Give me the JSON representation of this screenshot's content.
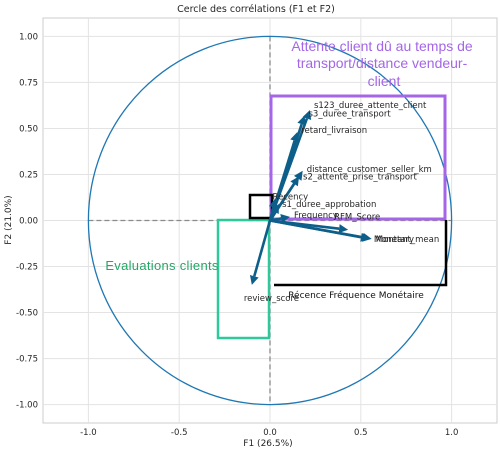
{
  "chart_data": {
    "type": "scatter",
    "title": "Cercle des corrélations (F1 et F2)",
    "xlabel": "F1 (26.5%)",
    "ylabel": "F2 (21.0%)",
    "xlim": [
      -1.25,
      1.25
    ],
    "ylim": [
      -1.1,
      1.1
    ],
    "xticks": [
      "-1.0",
      "-0.5",
      "0.0",
      "0.5",
      "1.0"
    ],
    "yticks": [
      "1.00",
      "0.75",
      "0.50",
      "0.25",
      "0.00",
      "-0.25",
      "-0.50",
      "-0.75",
      "-1.00"
    ],
    "grid": true,
    "colors": {
      "arrows": "#0d5f8a",
      "circle": "#1f77b4",
      "purple_box": "#a466e6",
      "green_box": "#2dc99a",
      "black_box": "#000000"
    },
    "vectors": [
      {
        "name": "s123_duree_attente_client",
        "x": 0.22,
        "y": 0.6
      },
      {
        "name": "s3_duree_transport",
        "x": 0.19,
        "y": 0.57
      },
      {
        "name": "retard_livraison",
        "x": 0.15,
        "y": 0.48
      },
      {
        "name": "distance_customer_seller_km",
        "x": 0.18,
        "y": 0.27
      },
      {
        "name": "s2_attente_prise_transport",
        "x": 0.16,
        "y": 0.24
      },
      {
        "name": "Recency",
        "x": 0.03,
        "y": 0.12
      },
      {
        "name": "s1_duree_approbation",
        "x": 0.05,
        "y": 0.09
      },
      {
        "name": "Frequency",
        "x": 0.11,
        "y": 0.02
      },
      {
        "name": "RFM_Score",
        "x": 0.43,
        "y": -0.05
      },
      {
        "name": "Monetary",
        "x": 0.55,
        "y": -0.1
      },
      {
        "name": "Montant_mean",
        "x": 0.56,
        "y": -0.1
      },
      {
        "name": "review_score",
        "x": -0.1,
        "y": -0.35
      }
    ],
    "annotations": {
      "purple": "Attente client dû au temps de transport/distance vendeur-client",
      "purple_lines": [
        "Attente client dû au temps de",
        "transport/distance vendeur-",
        "client"
      ],
      "green": "Evaluations clients",
      "black": "Récence Fréquence Monétaire"
    }
  }
}
